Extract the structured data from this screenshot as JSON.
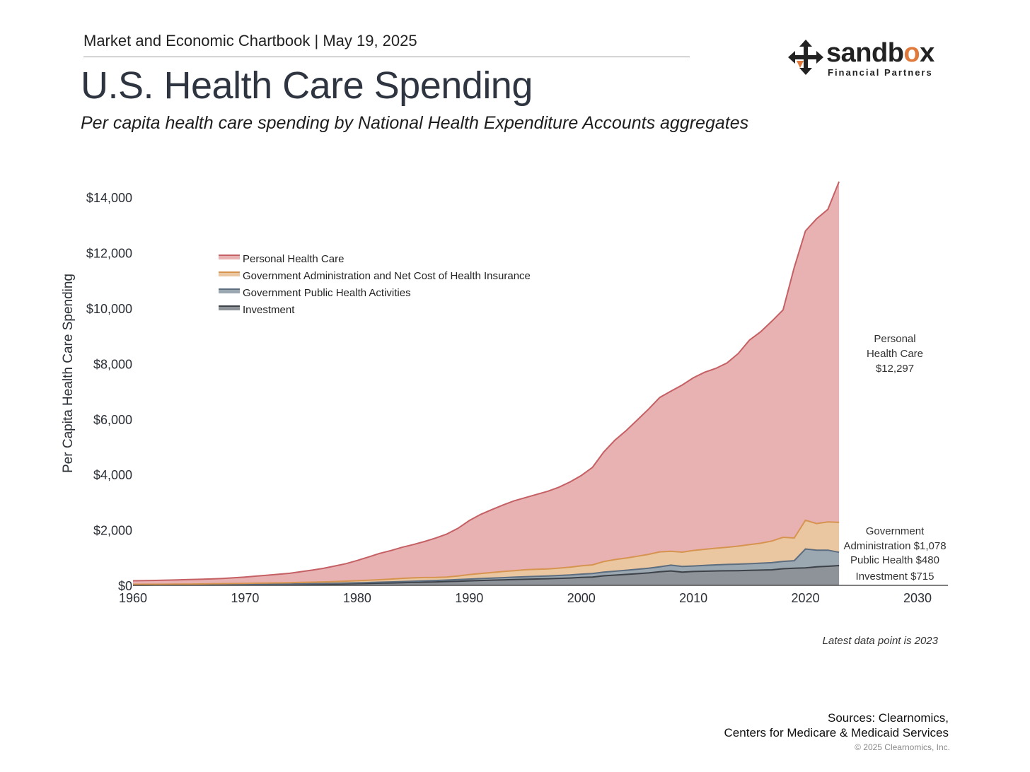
{
  "header": {
    "chartbook": "Market and Economic Chartbook | May 19, 2025",
    "title": "U.S. Health Care Spending",
    "subtitle": "Per capita health care spending by National Health Expenditure Accounts aggregates"
  },
  "logo": {
    "icon": "four-arrows-move-icon",
    "word_main": "sandb",
    "word_accent": "o",
    "word_end": "x",
    "tagline": "Financial Partners",
    "accent_color": "#e07a3c"
  },
  "chart_data": {
    "type": "area",
    "stacked": true,
    "ylabel": "Per Capita Health Care Spending",
    "xlabel": "",
    "xlim": [
      1960,
      2033
    ],
    "ylim": [
      0,
      15000
    ],
    "x_ticks": [
      1960,
      1970,
      1980,
      1990,
      2000,
      2010,
      2020,
      2030
    ],
    "x_tick_labels": [
      "1960",
      "1970",
      "1980",
      "1990",
      "2000",
      "2010",
      "2020",
      "2030"
    ],
    "y_ticks": [
      0,
      2000,
      4000,
      6000,
      8000,
      10000,
      12000,
      14000
    ],
    "y_tick_labels": [
      "$0",
      "$2,000",
      "$4,000",
      "$6,000",
      "$8,000",
      "$10,000",
      "$12,000",
      "$14,000"
    ],
    "grid": false,
    "legend_position": "upper-left",
    "x": [
      1960,
      1961,
      1962,
      1963,
      1964,
      1965,
      1966,
      1967,
      1968,
      1969,
      1970,
      1971,
      1972,
      1973,
      1974,
      1975,
      1976,
      1977,
      1978,
      1979,
      1980,
      1981,
      1982,
      1983,
      1984,
      1985,
      1986,
      1987,
      1988,
      1989,
      1990,
      1991,
      1992,
      1993,
      1994,
      1995,
      1996,
      1997,
      1998,
      1999,
      2000,
      2001,
      2002,
      2003,
      2004,
      2005,
      2006,
      2007,
      2008,
      2009,
      2010,
      2011,
      2012,
      2013,
      2014,
      2015,
      2016,
      2017,
      2018,
      2019,
      2020,
      2021,
      2022,
      2023
    ],
    "series": [
      {
        "name": "Investment",
        "color": "#3d4148",
        "fill": "#8e9399",
        "values": [
          10,
          11,
          12,
          13,
          14,
          15,
          17,
          19,
          21,
          23,
          25,
          27,
          29,
          32,
          35,
          38,
          42,
          46,
          52,
          58,
          64,
          71,
          79,
          88,
          97,
          108,
          116,
          126,
          137,
          149,
          163,
          176,
          188,
          199,
          210,
          220,
          230,
          240,
          252,
          265,
          285,
          300,
          345,
          370,
          395,
          420,
          450,
          490,
          520,
          480,
          500,
          510,
          520,
          525,
          530,
          540,
          550,
          560,
          600,
          620,
          630,
          670,
          690,
          715
        ]
      },
      {
        "name": "Government Public Health Activities",
        "color": "#5d6d80",
        "fill": "#9ba8b2",
        "values": [
          5,
          5,
          5,
          6,
          6,
          7,
          7,
          8,
          8,
          9,
          10,
          11,
          12,
          13,
          14,
          16,
          18,
          20,
          23,
          26,
          29,
          32,
          35,
          38,
          40,
          43,
          46,
          50,
          55,
          60,
          65,
          70,
          75,
          80,
          85,
          90,
          95,
          100,
          105,
          110,
          120,
          125,
          135,
          140,
          150,
          160,
          170,
          180,
          210,
          200,
          200,
          210,
          220,
          230,
          235,
          240,
          250,
          260,
          265,
          270,
          680,
          600,
          580,
          480
        ]
      },
      {
        "name": "Government Administration and Net Cost of Health Insurance",
        "color": "#d69450",
        "fill": "#eac7a0",
        "values": [
          20,
          21,
          22,
          23,
          24,
          25,
          27,
          29,
          31,
          34,
          37,
          40,
          42,
          45,
          48,
          52,
          55,
          58,
          63,
          68,
          75,
          80,
          90,
          100,
          115,
          120,
          120,
          110,
          110,
          130,
          160,
          180,
          200,
          220,
          235,
          255,
          255,
          255,
          265,
          280,
          300,
          315,
          380,
          420,
          440,
          470,
          500,
          540,
          500,
          520,
          560,
          580,
          600,
          620,
          650,
          690,
          720,
          780,
          870,
          820,
          1040,
          960,
          1020,
          1078
        ]
      },
      {
        "name": "Personal Health Care",
        "color": "#c56064",
        "fill": "#e8b1b2",
        "values": [
          130,
          135,
          140,
          147,
          154,
          161,
          168,
          175,
          190,
          210,
          230,
          255,
          285,
          310,
          340,
          390,
          435,
          490,
          560,
          630,
          730,
          840,
          950,
          1030,
          1120,
          1200,
          1300,
          1420,
          1550,
          1720,
          1950,
          2130,
          2270,
          2400,
          2520,
          2600,
          2700,
          2800,
          2920,
          3080,
          3260,
          3520,
          3950,
          4310,
          4600,
          4920,
          5240,
          5570,
          5780,
          6030,
          6230,
          6390,
          6490,
          6650,
          6950,
          7380,
          7630,
          7930,
          8200,
          9760,
          10440,
          11000,
          11280,
          12297
        ]
      }
    ],
    "legend": [
      {
        "label": "Personal Health Care",
        "color": "#c56064",
        "fill": "#e8b1b2"
      },
      {
        "label": "Government Administration and Net Cost of Health Insurance",
        "color": "#d69450",
        "fill": "#eac7a0"
      },
      {
        "label": "Government Public Health Activities",
        "color": "#5d6d80",
        "fill": "#9ba8b2"
      },
      {
        "label": "Investment",
        "color": "#3d4148",
        "fill": "#8e9399"
      }
    ],
    "end_labels": [
      {
        "lines": [
          "Personal",
          "Health Care",
          "$12,297"
        ]
      },
      {
        "lines": [
          "Government",
          "Administration $1,078"
        ]
      },
      {
        "lines": [
          "Public Health $480"
        ]
      },
      {
        "lines": [
          "Investment $715"
        ]
      }
    ],
    "note": "Latest data point is 2023"
  },
  "footer": {
    "sources_line1": "Sources: Clearnomics,",
    "sources_line2": "Centers for Medicare & Medicaid Services",
    "copyright": "© 2025 Clearnomics, Inc."
  }
}
